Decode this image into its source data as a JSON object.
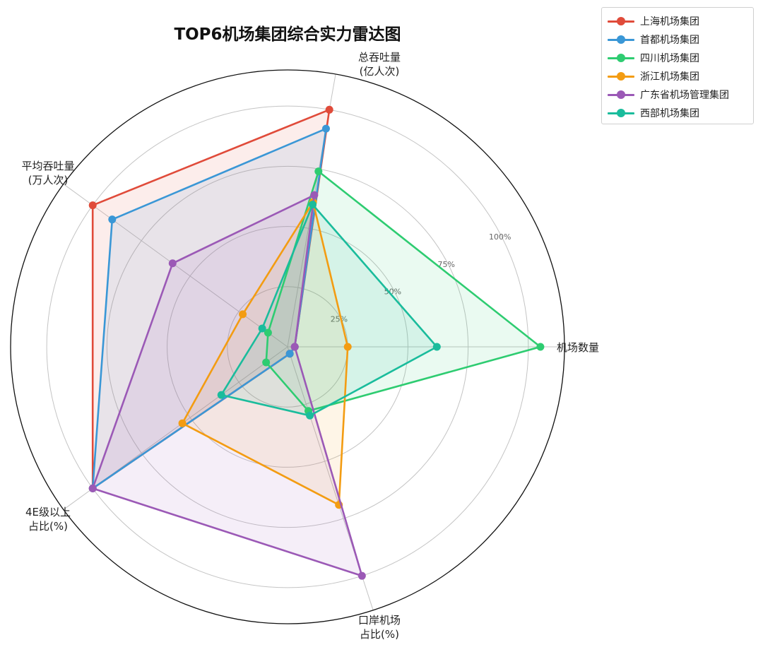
{
  "chart_data": {
    "type": "radar",
    "title": "TOP6机场集团综合实力雷达图",
    "axes": [
      {
        "line1": "总吞吐量",
        "line2": "(亿人次)"
      },
      {
        "line1": "机场数量",
        "line2": ""
      },
      {
        "line1": "口岸机场",
        "line2": "占比(%)"
      },
      {
        "line1": "4E级以上",
        "line2": "占比(%)"
      },
      {
        "line1": "平均吞吐量",
        "line2": "(万人次)"
      }
    ],
    "rticks": [
      25,
      50,
      75,
      100
    ],
    "rtick_labels": [
      "25%",
      "50%",
      "75%",
      "100%"
    ],
    "rlim": [
      0,
      115
    ],
    "grid": true,
    "legend_position": "top-right",
    "series": [
      {
        "name": "上海机场集团",
        "color": "#e04b3a",
        "values": [
          100,
          3,
          3,
          100,
          100
        ]
      },
      {
        "name": "首都机场集团",
        "color": "#3a97d6",
        "values": [
          92,
          3,
          3,
          100,
          90
        ]
      },
      {
        "name": "四川机场集团",
        "color": "#2ecc71",
        "values": [
          74,
          105,
          28,
          11,
          10
        ]
      },
      {
        "name": "浙江机场集团",
        "color": "#f39c12",
        "values": [
          61,
          25,
          69,
          54,
          23
        ]
      },
      {
        "name": "广东省机场管理集团",
        "color": "#9b59b6",
        "values": [
          64,
          3,
          100,
          100,
          59
        ]
      },
      {
        "name": "西部机场集团",
        "color": "#1abc9c",
        "values": [
          60,
          62,
          30,
          34,
          13
        ]
      }
    ]
  }
}
